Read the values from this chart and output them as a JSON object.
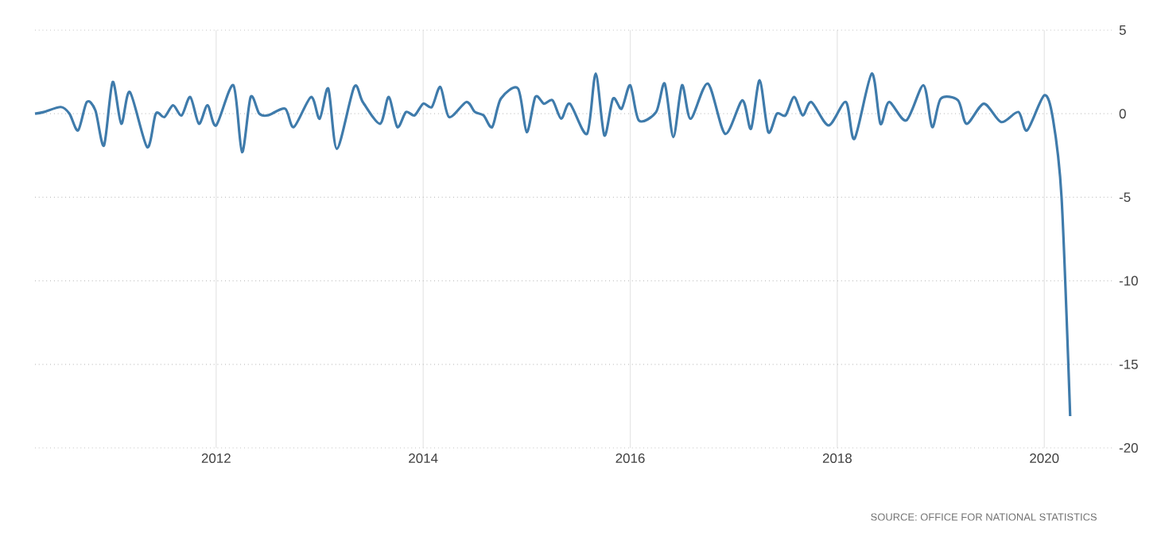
{
  "chart_data": {
    "type": "line",
    "x": [
      "2010-04",
      "2010-05",
      "2010-07",
      "2010-08",
      "2010-09",
      "2010-10",
      "2010-11",
      "2010-12",
      "2011-01",
      "2011-02",
      "2011-03",
      "2011-05",
      "2011-06",
      "2011-07",
      "2011-08",
      "2011-09",
      "2011-10",
      "2011-11",
      "2011-12",
      "2012-01",
      "2012-03",
      "2012-04",
      "2012-05",
      "2012-06",
      "2012-07",
      "2012-09",
      "2012-10",
      "2012-12",
      "2013-01",
      "2013-02",
      "2013-03",
      "2013-05",
      "2013-06",
      "2013-08",
      "2013-09",
      "2013-10",
      "2013-11",
      "2013-12",
      "2014-01",
      "2014-02",
      "2014-03",
      "2014-04",
      "2014-06",
      "2014-07",
      "2014-08",
      "2014-09",
      "2014-10",
      "2014-12",
      "2015-01",
      "2015-02",
      "2015-03",
      "2015-04",
      "2015-05",
      "2015-06",
      "2015-08",
      "2015-09",
      "2015-10",
      "2015-11",
      "2015-12",
      "2016-01",
      "2016-02",
      "2016-04",
      "2016-05",
      "2016-06",
      "2016-07",
      "2016-08",
      "2016-10",
      "2016-12",
      "2017-02",
      "2017-03",
      "2017-04",
      "2017-05",
      "2017-06",
      "2017-07",
      "2017-08",
      "2017-09",
      "2017-10",
      "2017-12",
      "2018-02",
      "2018-03",
      "2018-05",
      "2018-06",
      "2018-07",
      "2018-09",
      "2018-11",
      "2018-12",
      "2019-01",
      "2019-03",
      "2019-04",
      "2019-06",
      "2019-08",
      "2019-10",
      "2019-11",
      "2020-01",
      "2020-02",
      "2020-03",
      "2020-04"
    ],
    "series": [
      {
        "color": "#3f7bab",
        "values": [
          0.0,
          0.1,
          0.4,
          0.0,
          -1.0,
          0.7,
          0.2,
          -1.9,
          1.9,
          -0.6,
          1.3,
          -2.0,
          0.0,
          -0.2,
          0.5,
          -0.1,
          1.0,
          -0.6,
          0.5,
          -0.7,
          1.7,
          -2.3,
          1.0,
          0.0,
          -0.1,
          0.3,
          -0.8,
          1.0,
          -0.3,
          1.5,
          -2.1,
          1.6,
          0.7,
          -0.6,
          1.0,
          -0.8,
          0.1,
          -0.1,
          0.6,
          0.4,
          1.6,
          -0.2,
          0.7,
          0.1,
          -0.1,
          -0.8,
          0.9,
          1.5,
          -1.1,
          1.0,
          0.6,
          0.8,
          -0.3,
          0.6,
          -1.2,
          2.4,
          -1.3,
          0.9,
          0.3,
          1.7,
          -0.4,
          0.1,
          1.8,
          -1.4,
          1.7,
          -0.3,
          1.8,
          -1.2,
          0.8,
          -0.9,
          2.0,
          -1.1,
          0.0,
          -0.1,
          1.0,
          -0.1,
          0.7,
          -0.7,
          0.7,
          -1.5,
          2.4,
          -0.6,
          0.7,
          -0.4,
          1.7,
          -0.8,
          0.9,
          0.8,
          -0.6,
          0.6,
          -0.5,
          0.1,
          -1.0,
          1.1,
          -0.3,
          -5.0,
          -18.1
        ]
      }
    ],
    "xlim": [
      "2010-04",
      "2020-09"
    ],
    "xticks": [
      "2012",
      "2014",
      "2016",
      "2018",
      "2020"
    ],
    "ylim": [
      -20,
      5
    ],
    "yticks": [
      5,
      0,
      -5,
      -10,
      -15,
      -20
    ],
    "grid": true,
    "marker": "none",
    "line_style": "solid",
    "annotations": [
      "SOURCE: OFFICE FOR NATIONAL STATISTICS"
    ]
  }
}
